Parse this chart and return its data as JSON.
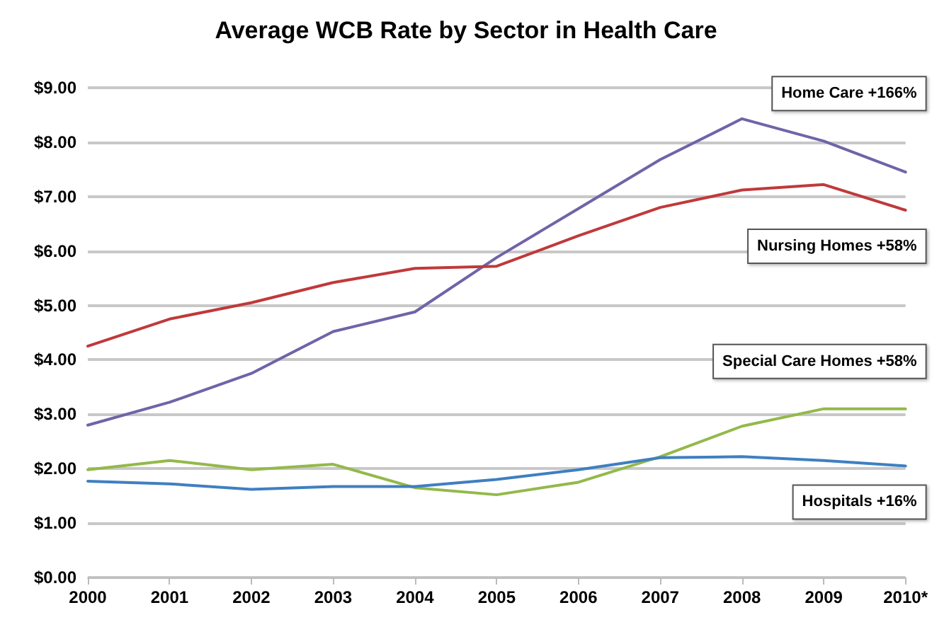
{
  "chart_data": {
    "type": "line",
    "title": "Average WCB Rate by Sector in Health Care",
    "categories": [
      "2000",
      "2001",
      "2002",
      "2003",
      "2004",
      "2005",
      "2006",
      "2007",
      "2008",
      "2009",
      "2010*"
    ],
    "series": [
      {
        "name": "Home Care +166%",
        "color": "#7163a8",
        "values": [
          2.8,
          3.22,
          3.75,
          4.52,
          4.88,
          5.88,
          6.78,
          7.68,
          8.43,
          8.02,
          7.45
        ]
      },
      {
        "name": "Nursing Homes +58%",
        "color": "#c0393b",
        "values": [
          4.25,
          4.75,
          5.05,
          5.42,
          5.68,
          5.72,
          6.28,
          6.8,
          7.12,
          7.22,
          6.75
        ]
      },
      {
        "name": "Special Care Homes +58%",
        "color": "#93b94a",
        "values": [
          1.98,
          2.15,
          1.98,
          2.08,
          1.65,
          1.52,
          1.75,
          2.22,
          2.78,
          3.1,
          3.1
        ]
      },
      {
        "name": "Hospitals +16%",
        "color": "#3f7fc1",
        "values": [
          1.77,
          1.72,
          1.62,
          1.67,
          1.67,
          1.8,
          1.98,
          2.2,
          2.22,
          2.15,
          2.05
        ]
      }
    ],
    "ylim": [
      0,
      9
    ],
    "yticks": [
      {
        "value": 0,
        "label": "$0.00"
      },
      {
        "value": 1,
        "label": "$1.00"
      },
      {
        "value": 2,
        "label": "$2.00"
      },
      {
        "value": 3,
        "label": "$3.00"
      },
      {
        "value": 4,
        "label": "$4.00"
      },
      {
        "value": 5,
        "label": "$5.00"
      },
      {
        "value": 6,
        "label": "$6.00"
      },
      {
        "value": 7,
        "label": "$7.00"
      },
      {
        "value": 8,
        "label": "$8.00"
      },
      {
        "value": 9,
        "label": "$9.00"
      }
    ],
    "grid": "y",
    "marker": "none",
    "line_style": "solid",
    "legend": false
  }
}
